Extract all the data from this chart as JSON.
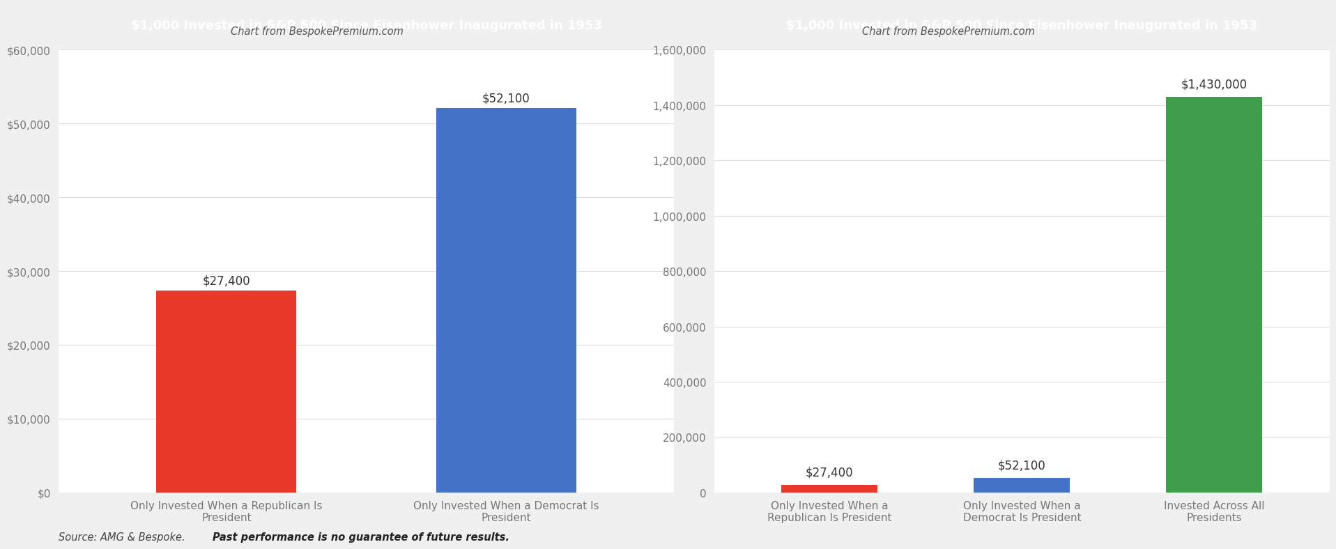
{
  "chart1_title": "$1,000 Invested in S&P 500 Since Eisenhower Inaugurated in 1953",
  "chart1_subtitle": "Chart from BespokePremium.com",
  "chart1_categories": [
    "Only Invested When a Republican Is\nPresident",
    "Only Invested When a Democrat Is\nPresident"
  ],
  "chart1_values": [
    27400,
    52100
  ],
  "chart1_colors": [
    "#e8392a",
    "#4472c4"
  ],
  "chart1_ylim": [
    0,
    60000
  ],
  "chart1_yticks": [
    0,
    10000,
    20000,
    30000,
    40000,
    50000,
    60000
  ],
  "chart1_yticklabels": [
    "$0",
    "$10,000",
    "$20,000",
    "$30,000",
    "$40,000",
    "$50,000",
    "$60,000"
  ],
  "chart1_bar_labels": [
    "$27,400",
    "$52,100"
  ],
  "chart2_title": "$1,000 Invested in S&P 500 Since Eisenhower Inaugurated in 1953",
  "chart2_subtitle": "Chart from BespokePremium.com",
  "chart2_categories": [
    "Only Invested When a\nRepublican Is President",
    "Only Invested When a\nDemocrat Is President",
    "Invested Across All\nPresidents"
  ],
  "chart2_values": [
    27400,
    52100,
    1430000
  ],
  "chart2_colors": [
    "#e8392a",
    "#4472c4",
    "#3e9e4e"
  ],
  "chart2_ylim": [
    0,
    1600000
  ],
  "chart2_yticks": [
    0,
    200000,
    400000,
    600000,
    800000,
    1000000,
    1200000,
    1400000,
    1600000
  ],
  "chart2_yticklabels": [
    "0",
    "200,000",
    "400,000",
    "600,000",
    "800,000",
    "1,000,000",
    "1,200,000",
    "1,400,000",
    "1,600,000"
  ],
  "chart2_bar_labels": [
    "$27,400",
    "$52,100",
    "$1,430,000"
  ],
  "title1_bg_color": "#1e3a5f",
  "title2_bg_color": "#2e7d32",
  "title_text_color": "#ffffff",
  "subtitle_color": "#555555",
  "tick_label_color": "#777777",
  "gridline_color": "#dddddd",
  "source_text": "Source: AMG & Bespoke. ",
  "source_bold": "Past performance is no guarantee of future results.",
  "bg_color": "#ffffff",
  "outer_bg_color": "#f0f0f0"
}
